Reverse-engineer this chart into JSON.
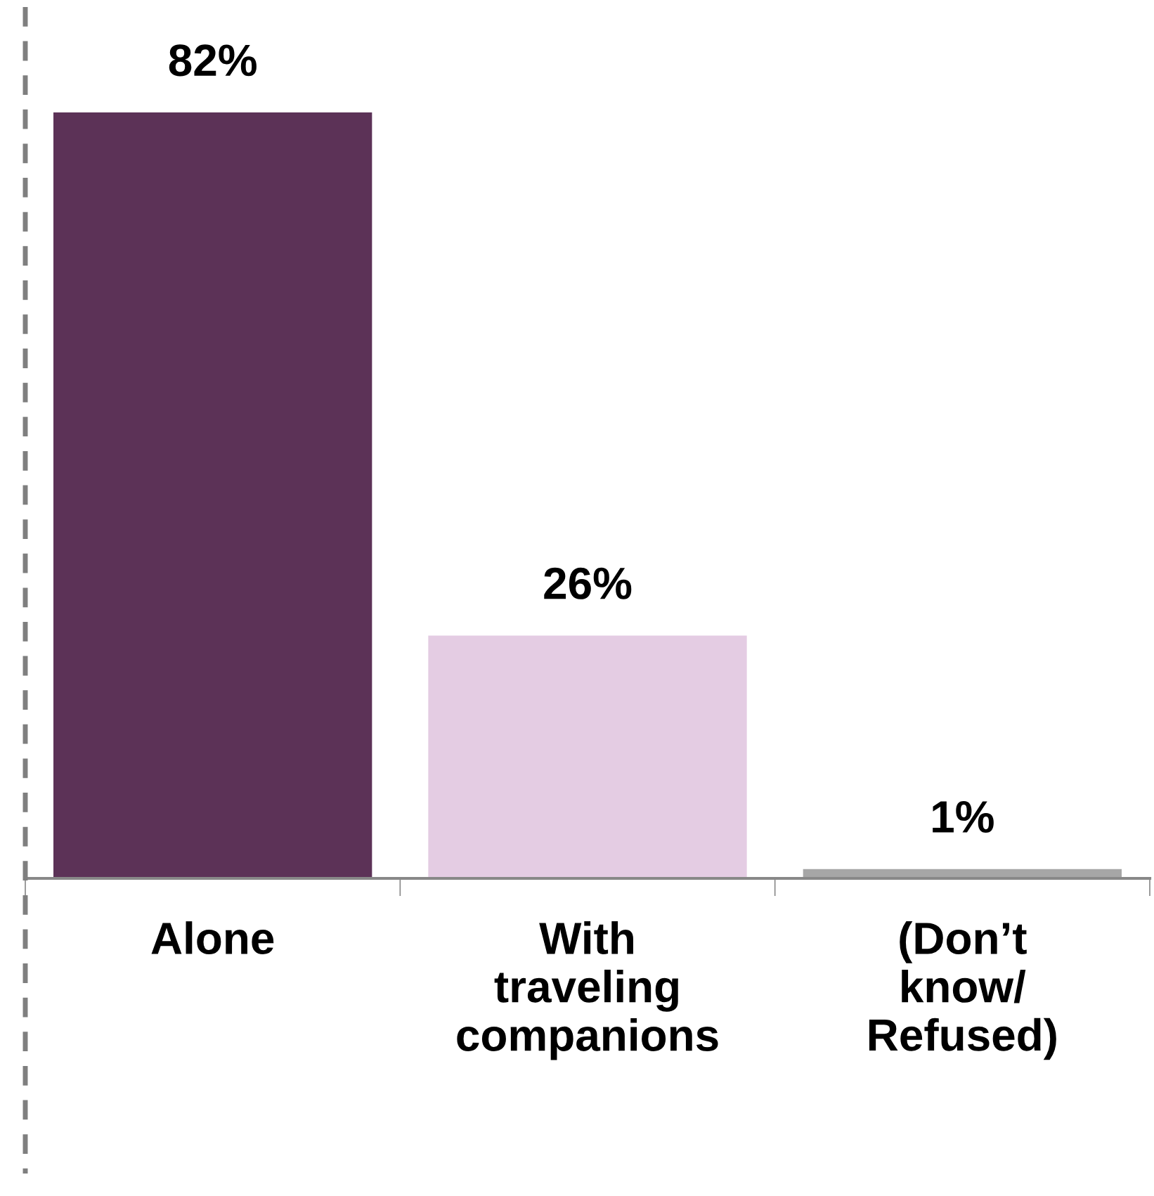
{
  "chart_data": {
    "type": "bar",
    "categories": [
      "Alone",
      "With\ntraveling\ncompanions",
      "(Don’t\nknow/\nRefused)"
    ],
    "values": [
      82,
      26,
      1
    ],
    "colors": [
      "#5c3257",
      "#e4cce3",
      "#a6a6a6"
    ],
    "data_labels": true,
    "value_labels": [
      "82%",
      "26%",
      "1%"
    ],
    "tick_labels": "x",
    "grid": false,
    "legend": false
  }
}
